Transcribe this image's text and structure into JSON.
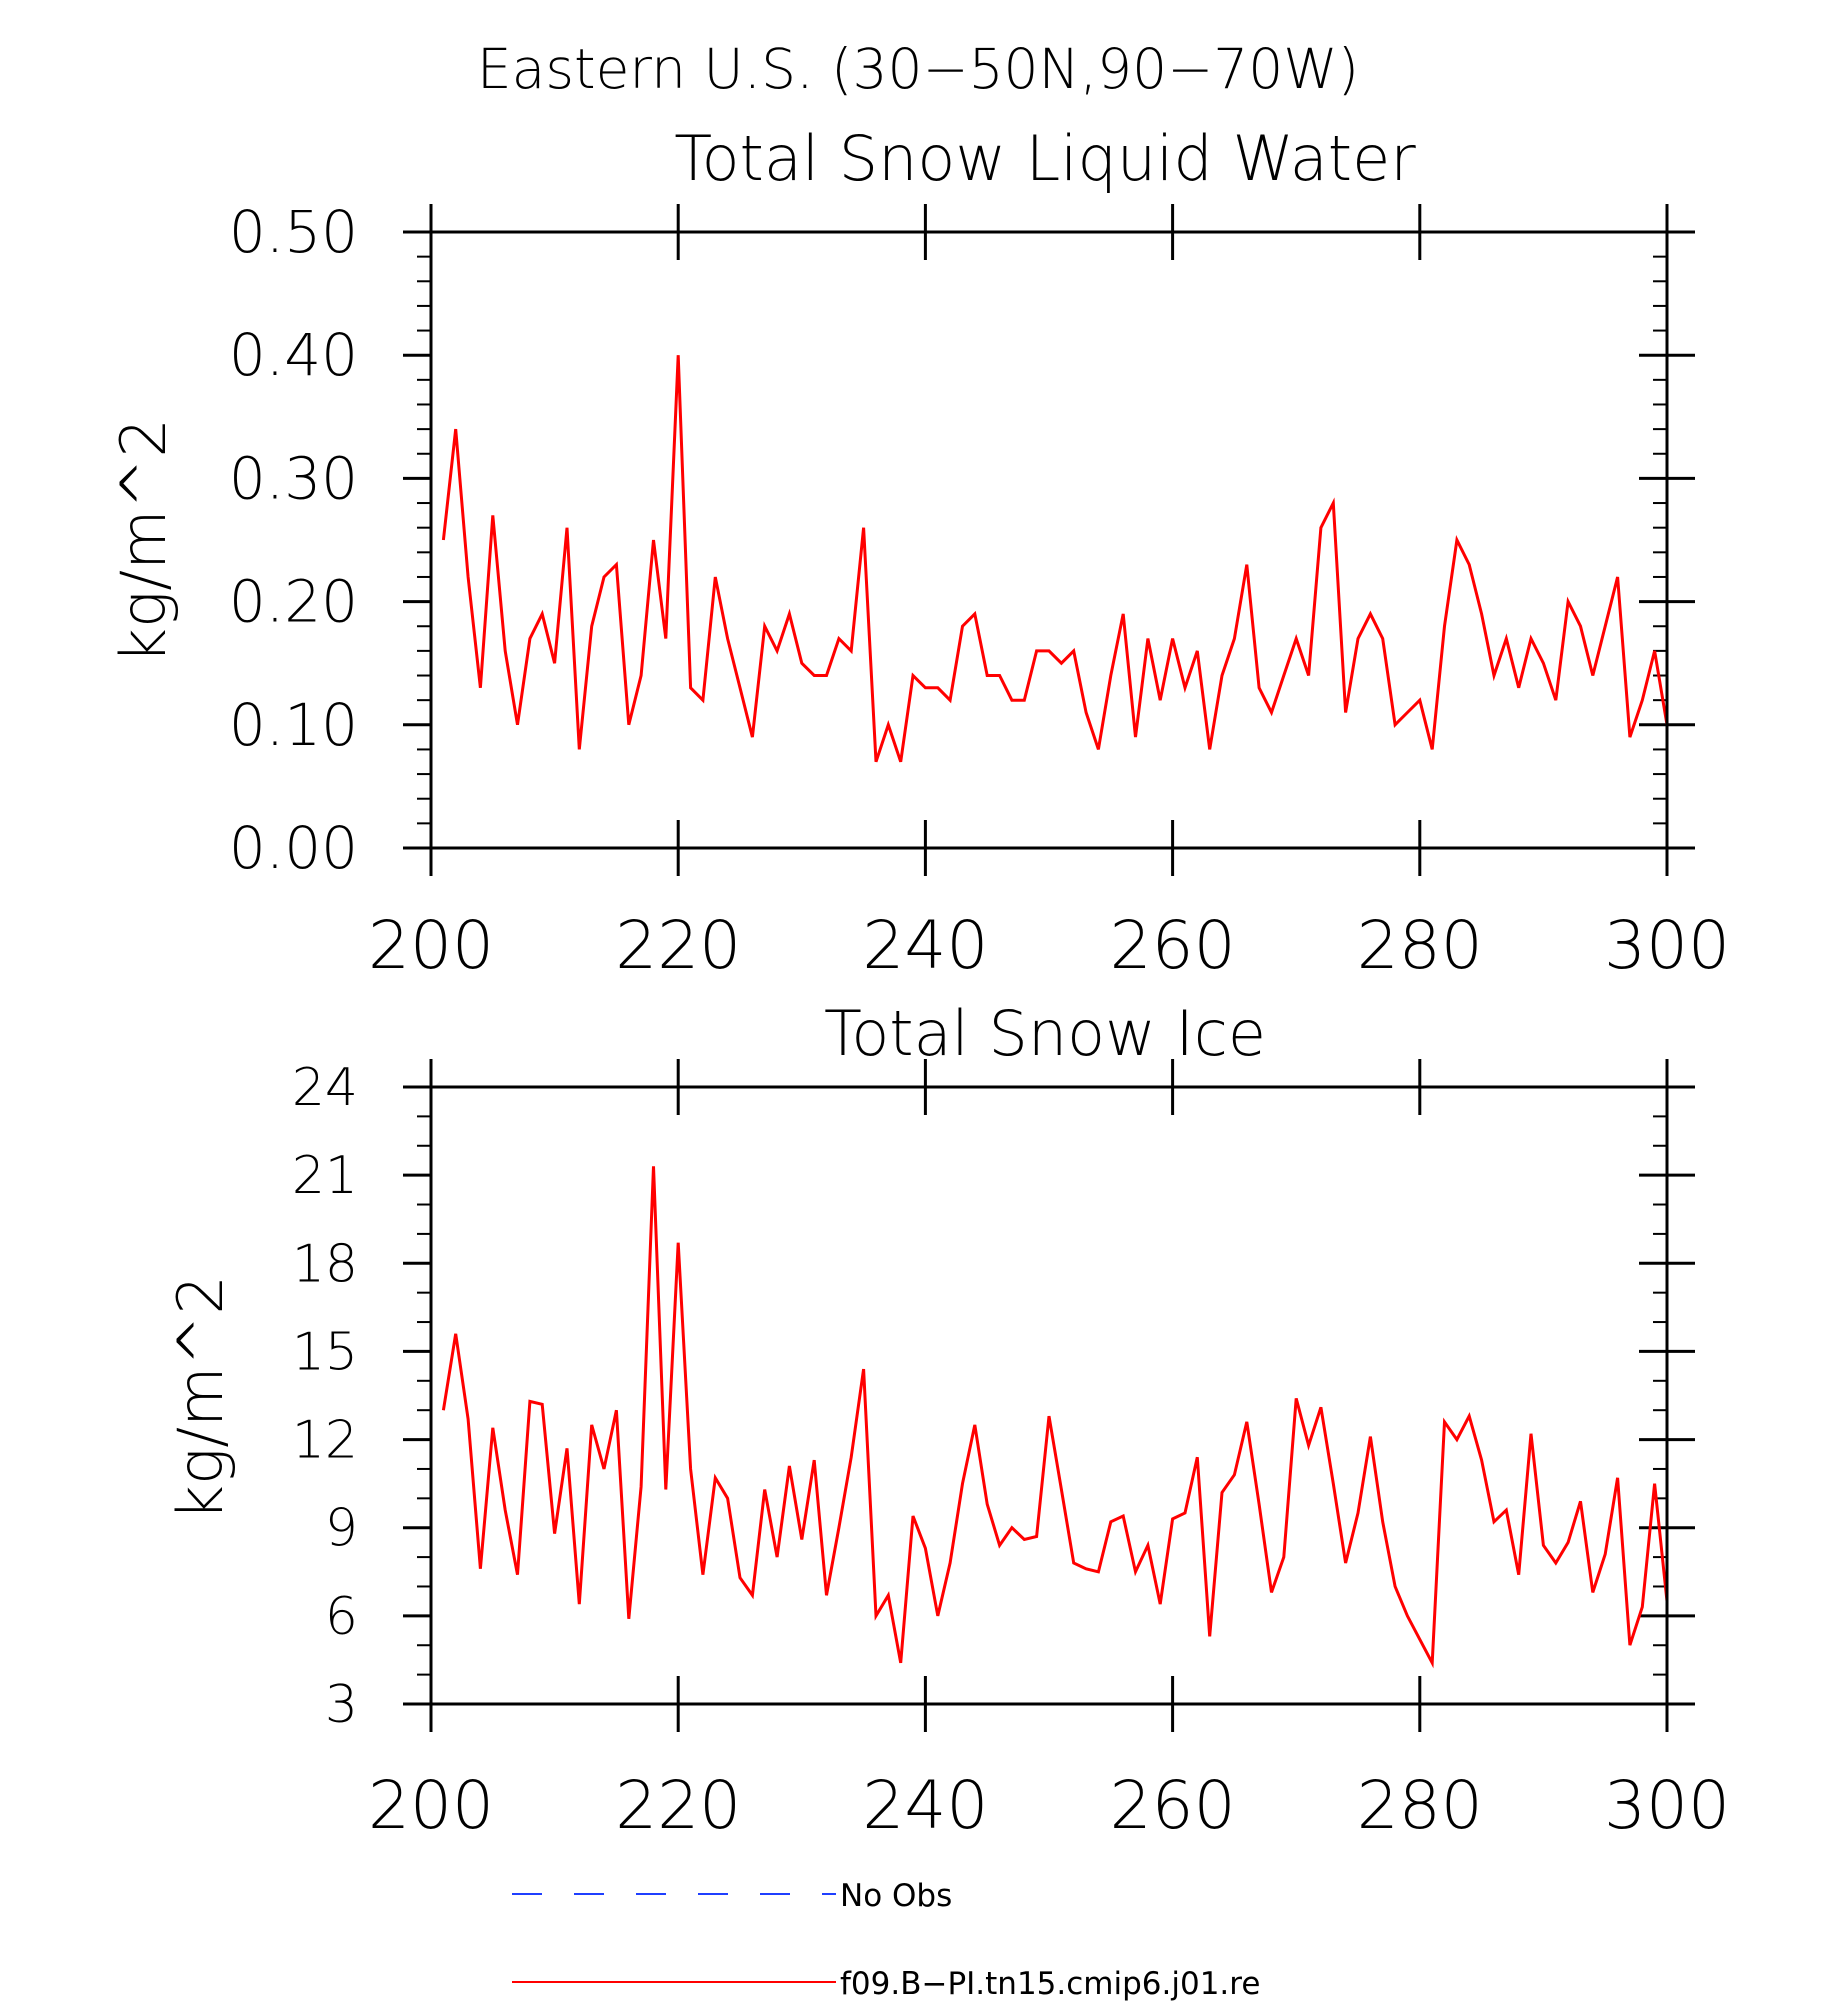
{
  "figure_title": "Eastern U.S. (30−50N,90−70W)",
  "legend": [
    {
      "label": "No Obs",
      "color": "#1f3fff",
      "style": "dashed"
    },
    {
      "label": "f09.B−PI.tn15.cmip6.j01.re",
      "color": "#ff0000",
      "style": "solid"
    }
  ],
  "chart_data": [
    {
      "type": "line",
      "title": "Total Snow Liquid Water",
      "xlabel": "",
      "ylabel": "kg/m^2",
      "xlim": [
        200,
        300
      ],
      "ylim": [
        0,
        0.5
      ],
      "x_ticks": [
        200,
        220,
        240,
        260,
        280,
        300
      ],
      "x_tick_labels": [
        "200",
        "220",
        "240",
        "260",
        "280",
        "300"
      ],
      "y_ticks": [
        0,
        0.1,
        0.2,
        0.3,
        0.4,
        0.5
      ],
      "y_tick_labels": [
        "0.00",
        "0.10",
        "0.20",
        "0.30",
        "0.40",
        "0.50"
      ],
      "grid": false,
      "series": [
        {
          "name": "f09.B−PI.tn15.cmip6.j01.re",
          "color": "#ff0000",
          "x_start": 201,
          "x_step": 1,
          "values": [
            0.25,
            0.34,
            0.22,
            0.13,
            0.27,
            0.16,
            0.1,
            0.17,
            0.19,
            0.15,
            0.26,
            0.08,
            0.18,
            0.22,
            0.23,
            0.1,
            0.14,
            0.25,
            0.17,
            0.4,
            0.13,
            0.12,
            0.22,
            0.17,
            0.13,
            0.09,
            0.18,
            0.16,
            0.19,
            0.15,
            0.14,
            0.14,
            0.17,
            0.16,
            0.26,
            0.07,
            0.1,
            0.07,
            0.14,
            0.13,
            0.13,
            0.12,
            0.18,
            0.19,
            0.14,
            0.14,
            0.12,
            0.12,
            0.16,
            0.16,
            0.15,
            0.16,
            0.11,
            0.08,
            0.14,
            0.19,
            0.09,
            0.17,
            0.12,
            0.17,
            0.13,
            0.16,
            0.08,
            0.14,
            0.17,
            0.23,
            0.13,
            0.11,
            0.14,
            0.17,
            0.14,
            0.26,
            0.28,
            0.11,
            0.17,
            0.19,
            0.17,
            0.1,
            0.11,
            0.12,
            0.08,
            0.18,
            0.25,
            0.23,
            0.19,
            0.14,
            0.17,
            0.13,
            0.17,
            0.15,
            0.12,
            0.2,
            0.18,
            0.14,
            0.18,
            0.22,
            0.09,
            0.12,
            0.16,
            0.1
          ]
        }
      ]
    },
    {
      "type": "line",
      "title": "Total Snow Ice",
      "xlabel": "",
      "ylabel": "kg/m^2",
      "xlim": [
        200,
        300
      ],
      "ylim": [
        3,
        24
      ],
      "x_ticks": [
        200,
        220,
        240,
        260,
        280,
        300
      ],
      "x_tick_labels": [
        "200",
        "220",
        "240",
        "260",
        "280",
        "300"
      ],
      "y_ticks": [
        3,
        6,
        9,
        12,
        15,
        18,
        21,
        24
      ],
      "y_tick_labels": [
        "3",
        "6",
        "9",
        "12",
        "15",
        "18",
        "21",
        "24"
      ],
      "grid": false,
      "series": [
        {
          "name": "f09.B−PI.tn15.cmip6.j01.re",
          "color": "#ff0000",
          "x_start": 201,
          "x_step": 1,
          "values": [
            13.0,
            15.6,
            12.7,
            7.6,
            12.4,
            9.6,
            7.4,
            13.3,
            13.2,
            8.8,
            11.7,
            6.4,
            12.5,
            11.0,
            13.0,
            5.9,
            10.4,
            21.3,
            10.3,
            18.7,
            11.0,
            7.4,
            10.7,
            10.0,
            7.3,
            6.7,
            10.3,
            8.0,
            11.1,
            8.6,
            11.3,
            6.7,
            9.0,
            11.4,
            14.4,
            6.0,
            6.7,
            4.4,
            9.4,
            8.3,
            6.0,
            7.8,
            10.5,
            12.5,
            9.8,
            8.4,
            9.0,
            8.6,
            8.7,
            12.8,
            10.3,
            7.8,
            7.6,
            7.5,
            9.2,
            9.4,
            7.5,
            8.4,
            6.4,
            9.3,
            9.5,
            11.4,
            5.3,
            10.2,
            10.8,
            12.6,
            9.8,
            6.8,
            8.0,
            13.4,
            11.8,
            13.1,
            10.5,
            7.8,
            9.5,
            12.1,
            9.2,
            7.0,
            6.0,
            5.2,
            4.4,
            12.6,
            12.0,
            12.8,
            11.3,
            9.2,
            9.6,
            7.4,
            12.2,
            8.4,
            7.8,
            8.5,
            9.9,
            6.8,
            8.1,
            10.7,
            5.0,
            6.3,
            10.5,
            6.5
          ]
        }
      ]
    }
  ]
}
